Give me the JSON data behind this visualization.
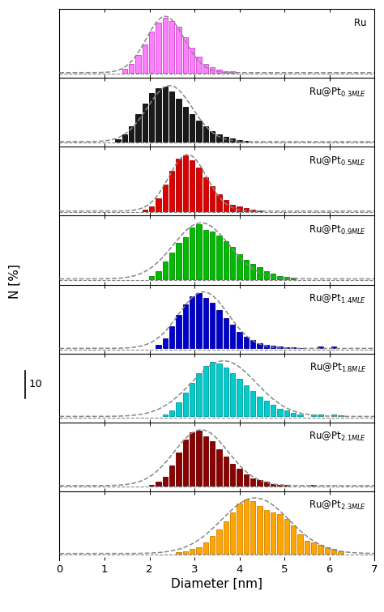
{
  "panels": [
    {
      "label": "Ru",
      "color": "#FF80FF",
      "edge_color": "#CC40CC",
      "bars_x": [
        1.45,
        1.6,
        1.75,
        1.9,
        2.05,
        2.2,
        2.35,
        2.5,
        2.65,
        2.8,
        2.95,
        3.1,
        3.25,
        3.4,
        3.55,
        3.7,
        3.85
      ],
      "bars_h": [
        1.0,
        2.5,
        5.0,
        8.0,
        11.5,
        14.0,
        15.5,
        14.5,
        13.0,
        10.0,
        7.0,
        4.5,
        2.5,
        1.5,
        0.8,
        0.5,
        0.3
      ],
      "gauss_mean": 2.35,
      "gauss_std": 0.42,
      "gauss_amp": 15.8
    },
    {
      "label": "Ru@Pt",
      "subscript": "0.3MLE",
      "color": "#1a1a1a",
      "edge_color": "#000000",
      "bars_x": [
        1.3,
        1.45,
        1.6,
        1.75,
        1.9,
        2.05,
        2.2,
        2.35,
        2.5,
        2.65,
        2.8,
        2.95,
        3.1,
        3.25,
        3.4,
        3.55,
        3.7,
        3.85,
        4.0,
        4.15
      ],
      "bars_h": [
        0.8,
        2.0,
        4.5,
        8.0,
        11.0,
        14.0,
        15.5,
        16.0,
        14.5,
        12.5,
        10.0,
        8.0,
        6.0,
        4.5,
        3.0,
        2.0,
        1.5,
        1.0,
        0.5,
        0.3
      ],
      "gauss_mean": 2.45,
      "gauss_std": 0.5,
      "gauss_amp": 16.2
    },
    {
      "label": "Ru@Pt",
      "subscript": "0.5MLE",
      "color": "#DD0000",
      "edge_color": "#AA0000",
      "bars_x": [
        1.9,
        2.05,
        2.2,
        2.35,
        2.5,
        2.65,
        2.8,
        2.95,
        3.1,
        3.25,
        3.4,
        3.55,
        3.7,
        3.85,
        4.0,
        4.15,
        4.3,
        4.45
      ],
      "bars_h": [
        0.5,
        1.5,
        4.0,
        8.5,
        13.0,
        17.0,
        18.0,
        16.5,
        14.0,
        11.0,
        8.0,
        5.5,
        3.5,
        2.0,
        1.5,
        1.0,
        0.5,
        0.3
      ],
      "gauss_mean": 2.85,
      "gauss_std": 0.42,
      "gauss_amp": 18.2
    },
    {
      "label": "Ru@Pt",
      "subscript": "0.9MLE",
      "color": "#00BB00",
      "edge_color": "#008800",
      "bars_x": [
        2.05,
        2.2,
        2.35,
        2.5,
        2.65,
        2.8,
        2.95,
        3.1,
        3.25,
        3.4,
        3.55,
        3.7,
        3.85,
        4.0,
        4.15,
        4.3,
        4.45,
        4.6,
        4.75,
        4.9,
        5.05,
        5.2
      ],
      "bars_h": [
        0.8,
        2.0,
        4.5,
        7.0,
        9.5,
        11.0,
        13.5,
        14.5,
        13.0,
        12.5,
        11.5,
        10.0,
        8.5,
        6.5,
        5.0,
        4.0,
        3.0,
        2.0,
        1.5,
        0.8,
        0.5,
        0.3
      ],
      "gauss_mean": 3.15,
      "gauss_std": 0.62,
      "gauss_amp": 14.8
    },
    {
      "label": "Ru@Pt",
      "subscript": "1.4MLE",
      "color": "#0000CC",
      "edge_color": "#000099",
      "bars_x": [
        2.2,
        2.35,
        2.5,
        2.65,
        2.8,
        2.95,
        3.1,
        3.25,
        3.4,
        3.55,
        3.7,
        3.85,
        4.0,
        4.15,
        4.3,
        4.45,
        4.6,
        4.75,
        4.9,
        5.05,
        5.2,
        5.35,
        5.8,
        6.1
      ],
      "bars_h": [
        1.0,
        3.0,
        6.5,
        10.0,
        13.0,
        15.5,
        16.5,
        15.0,
        13.5,
        11.5,
        9.0,
        7.0,
        5.0,
        3.5,
        2.5,
        1.5,
        1.0,
        0.8,
        0.5,
        0.3,
        0.3,
        0.2,
        0.5,
        0.5
      ],
      "gauss_mean": 3.2,
      "gauss_std": 0.55,
      "gauss_amp": 16.8
    },
    {
      "label": "Ru@Pt",
      "subscript": "1.8MLE",
      "color": "#00CCCC",
      "edge_color": "#009999",
      "bars_x": [
        2.35,
        2.5,
        2.65,
        2.8,
        2.95,
        3.1,
        3.25,
        3.4,
        3.55,
        3.7,
        3.85,
        4.0,
        4.15,
        4.3,
        4.45,
        4.6,
        4.75,
        4.9,
        5.05,
        5.2,
        5.35,
        5.65,
        5.8,
        6.1,
        6.25
      ],
      "bars_h": [
        0.5,
        1.5,
        3.5,
        6.0,
        8.5,
        11.0,
        13.0,
        14.0,
        13.5,
        12.5,
        11.0,
        9.5,
        8.0,
        6.5,
        5.0,
        4.0,
        3.0,
        2.0,
        1.5,
        1.0,
        0.5,
        0.5,
        0.5,
        0.5,
        0.3
      ],
      "gauss_mean": 3.65,
      "gauss_std": 0.72,
      "gauss_amp": 14.2
    },
    {
      "label": "Ru@Pt",
      "subscript": "2.1MLE",
      "color": "#8B0000",
      "edge_color": "#660000",
      "bars_x": [
        2.05,
        2.2,
        2.35,
        2.5,
        2.65,
        2.8,
        2.95,
        3.1,
        3.25,
        3.4,
        3.55,
        3.7,
        3.85,
        4.0,
        4.15,
        4.3,
        4.45,
        4.6,
        4.75,
        4.9,
        5.05,
        5.65
      ],
      "bars_h": [
        0.3,
        1.0,
        2.5,
        5.5,
        9.0,
        12.5,
        14.5,
        15.0,
        13.5,
        12.0,
        10.0,
        8.0,
        6.0,
        4.5,
        3.0,
        2.0,
        1.5,
        1.0,
        0.5,
        0.3,
        0.2,
        0.3
      ],
      "gauss_mean": 3.15,
      "gauss_std": 0.6,
      "gauss_amp": 15.2
    },
    {
      "label": "Ru@Pt",
      "subscript": "2.3MLE",
      "color": "#FFA500",
      "edge_color": "#CC8000",
      "bars_x": [
        2.65,
        2.8,
        2.95,
        3.1,
        3.25,
        3.4,
        3.55,
        3.7,
        3.85,
        4.0,
        4.15,
        4.3,
        4.45,
        4.6,
        4.75,
        4.9,
        5.05,
        5.2,
        5.35,
        5.5,
        5.65,
        5.8,
        5.95,
        6.1,
        6.25
      ],
      "bars_h": [
        0.3,
        0.5,
        1.0,
        1.5,
        2.5,
        4.0,
        5.5,
        7.5,
        9.5,
        11.5,
        12.5,
        12.0,
        11.0,
        10.0,
        9.5,
        9.0,
        8.0,
        6.5,
        4.5,
        3.0,
        2.5,
        2.0,
        1.5,
        1.0,
        0.5
      ],
      "gauss_mean": 4.35,
      "gauss_std": 0.75,
      "gauss_amp": 12.8
    }
  ],
  "xlabel": "Diameter [nm]",
  "ylabel": "N [%]",
  "xlim": [
    0,
    7
  ],
  "xticks": [
    0,
    1,
    2,
    3,
    4,
    5,
    6,
    7
  ],
  "bar_width": 0.13,
  "background_color": "#ffffff",
  "dashed_line_color": "#888888",
  "scale_bar_value": "10"
}
